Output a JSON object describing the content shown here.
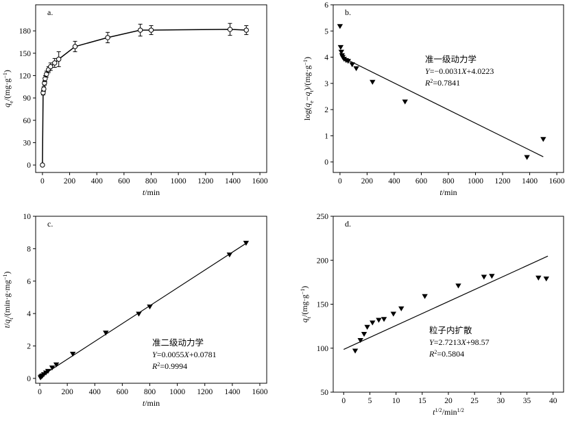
{
  "chart_data": [
    {
      "id": "a",
      "type": "line",
      "panel_label": "a.",
      "xlabel": "t/min",
      "ylabel": "qe/(mg·g−1)",
      "xlim": [
        -50,
        1650
      ],
      "ylim": [
        -10,
        215
      ],
      "xticks": [
        0,
        200,
        400,
        600,
        800,
        1000,
        1200,
        1400,
        1600
      ],
      "yticks": [
        0,
        30,
        60,
        90,
        120,
        150,
        180
      ],
      "series": [
        {
          "name": "qe",
          "marker": "open-circle",
          "errorbars": true,
          "x": [
            0,
            5,
            10,
            15,
            20,
            30,
            45,
            60,
            90,
            120,
            240,
            480,
            720,
            800,
            1380,
            1500
          ],
          "y": [
            0,
            97,
            102,
            110,
            116,
            122,
            128,
            132,
            137,
            142,
            159,
            171,
            181,
            181,
            182,
            181
          ],
          "err": [
            0,
            3,
            3,
            3,
            4,
            4,
            4,
            5,
            6,
            10,
            7,
            7,
            8,
            6,
            8,
            6
          ]
        }
      ]
    },
    {
      "id": "b",
      "type": "scatter",
      "panel_label": "b.",
      "xlabel": "t/min",
      "ylabel": "log(qe−qt)/(mg·g−1)",
      "xlim": [
        -50,
        1650
      ],
      "ylim": [
        -0.4,
        6
      ],
      "xticks": [
        0,
        200,
        400,
        600,
        800,
        1000,
        1200,
        1400,
        1600
      ],
      "yticks": [
        0,
        1,
        2,
        3,
        4,
        5,
        6
      ],
      "series": [
        {
          "name": "data",
          "marker": "down-triangle",
          "x": [
            0,
            5,
            10,
            15,
            20,
            30,
            45,
            60,
            90,
            120,
            240,
            480,
            1380,
            1500
          ],
          "y": [
            5.18,
            4.38,
            4.2,
            4.07,
            4.0,
            3.93,
            3.88,
            3.85,
            3.72,
            3.57,
            3.05,
            2.3,
            0.18,
            0.87
          ]
        }
      ],
      "fit": {
        "x": [
          15,
          1500
        ],
        "y": [
          4.0,
          0.2
        ]
      },
      "annotation": {
        "title": "准一级动力学",
        "equation": "Y=−0.0031X+4.0223",
        "r2": "R2=0.7841"
      }
    },
    {
      "id": "c",
      "type": "scatter",
      "panel_label": "c.",
      "xlabel": "t/min",
      "ylabel": "t/qt/(min·g·mg−1)",
      "xlim": [
        -30,
        1650
      ],
      "ylim": [
        -0.3,
        10
      ],
      "xticks": [
        0,
        200,
        400,
        600,
        800,
        1000,
        1200,
        1400,
        1600
      ],
      "yticks": [
        0,
        2,
        4,
        6,
        8,
        10
      ],
      "series": [
        {
          "name": "data",
          "marker": "down-triangle",
          "x": [
            5,
            10,
            15,
            20,
            30,
            45,
            60,
            90,
            120,
            240,
            480,
            720,
            800,
            1380,
            1500
          ],
          "y": [
            0.05,
            0.1,
            0.13,
            0.17,
            0.25,
            0.35,
            0.45,
            0.66,
            0.85,
            1.51,
            2.81,
            3.98,
            4.42,
            7.63,
            8.35
          ]
        }
      ],
      "fit": {
        "x": [
          0,
          1500
        ],
        "y": [
          0.08,
          8.33
        ]
      },
      "annotation": {
        "title": "准二级动力学",
        "equation": "Y=0.0055X+0.0781",
        "r2": "R2=0.9994"
      }
    },
    {
      "id": "d",
      "type": "scatter",
      "panel_label": "d.",
      "xlabel": "t1/2/min1/2",
      "ylabel": "qt/(mg·g−1)",
      "xlim": [
        -2,
        42
      ],
      "ylim": [
        50,
        250
      ],
      "xticks": [
        0,
        5,
        10,
        15,
        20,
        25,
        30,
        35,
        40
      ],
      "yticks": [
        50,
        100,
        150,
        200,
        250
      ],
      "series": [
        {
          "name": "data",
          "marker": "down-triangle",
          "x": [
            2.2,
            3.2,
            3.9,
            4.5,
            5.5,
            6.7,
            7.7,
            9.5,
            11.0,
            15.5,
            21.9,
            26.8,
            28.3,
            37.2,
            38.7
          ],
          "y": [
            97,
            109,
            116,
            124,
            129,
            132,
            133,
            139,
            145,
            159,
            171,
            181,
            182,
            180,
            179
          ]
        }
      ],
      "fit": {
        "x": [
          0,
          39
        ],
        "y": [
          98.6,
          204.7
        ]
      },
      "annotation": {
        "title": "粒子内扩散",
        "equation": "Y=2.7213X+98.57",
        "r2": "R2=0.5804"
      }
    }
  ]
}
